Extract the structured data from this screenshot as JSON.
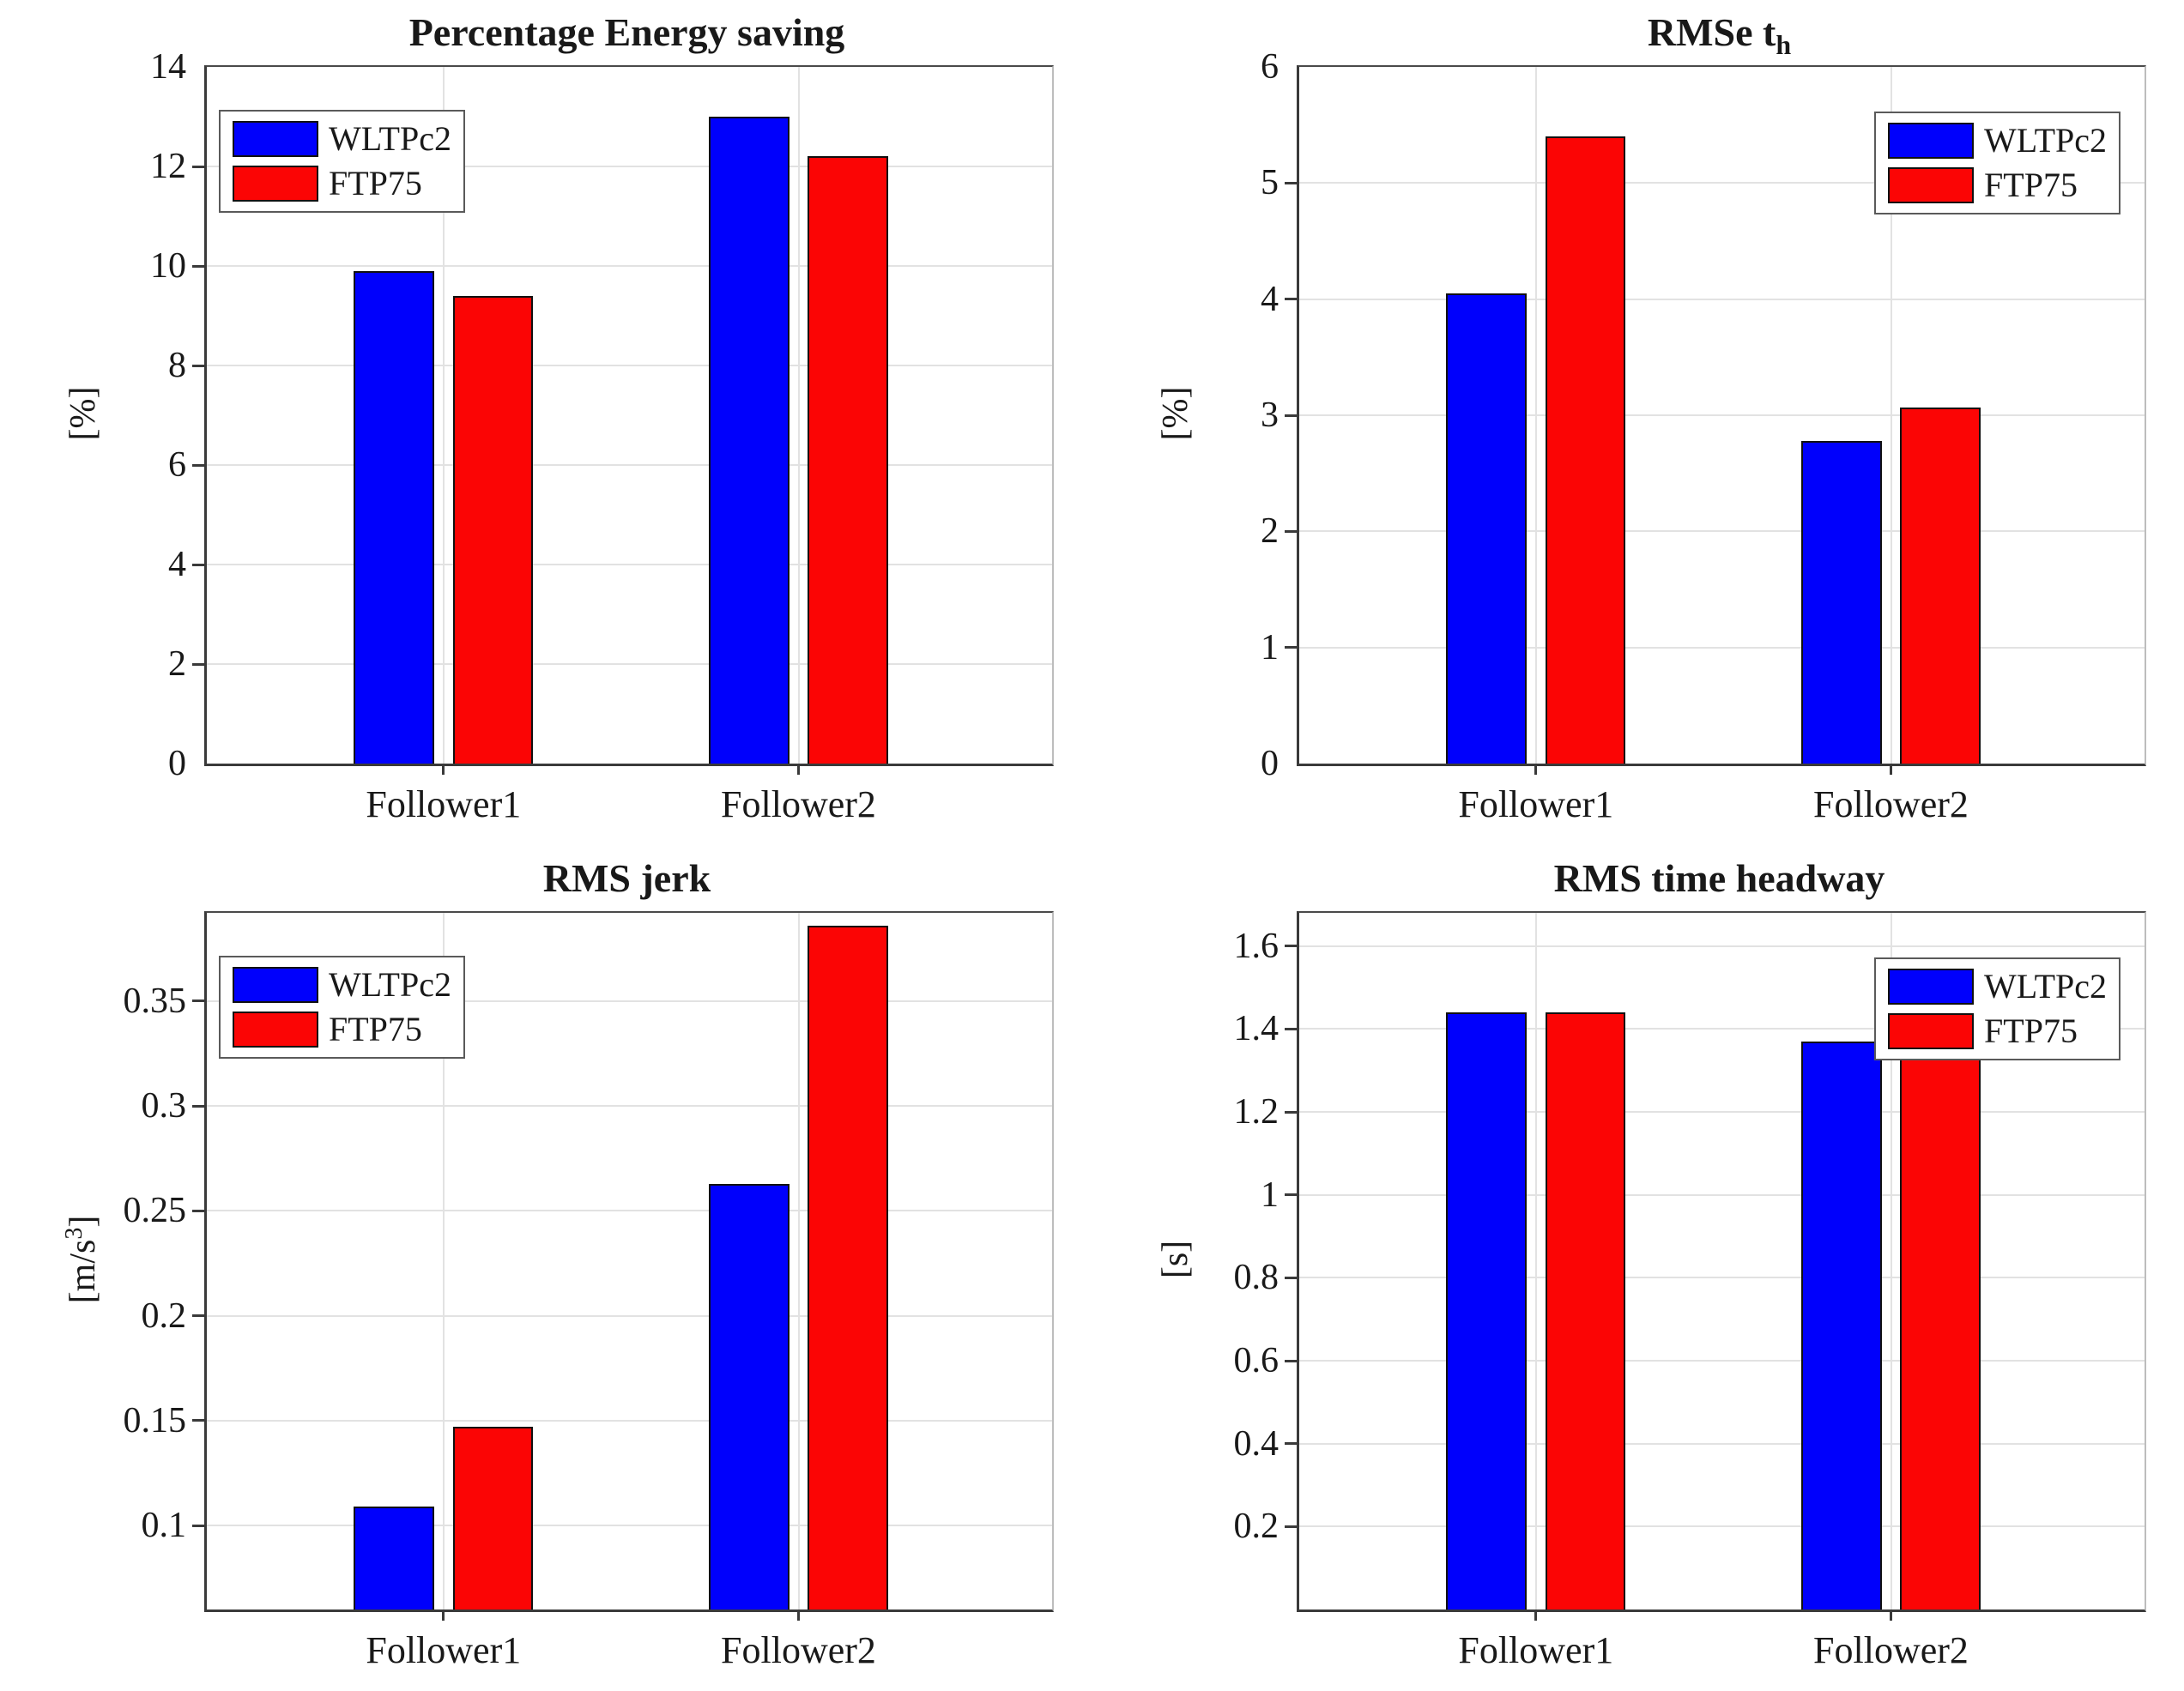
{
  "page": {
    "background": "#ffffff",
    "series_colors": {
      "WLTPc2": "#0000fc",
      "FTP75": "#fb0505"
    }
  },
  "chart_data": [
    {
      "type": "bar",
      "title": "Percentage Energy saving",
      "title_sub": "",
      "ylabel_pre": "[%]",
      "ylabel_sup": "",
      "ylabel_post": "",
      "categories": [
        "Follower1",
        "Follower2"
      ],
      "series": [
        {
          "name": "WLTPc2",
          "color": "#0000fc",
          "values": [
            9.9,
            13.0
          ]
        },
        {
          "name": "FTP75",
          "color": "#fb0505",
          "values": [
            9.4,
            12.2
          ]
        }
      ],
      "ylim": [
        0,
        14
      ],
      "yticks": [
        0,
        2,
        4,
        6,
        8,
        10,
        12,
        14
      ],
      "ytick_labels": [
        "0",
        "2",
        "4",
        "6",
        "8",
        "10",
        "12",
        "14"
      ],
      "grid": true,
      "legend_pos": "top-left",
      "centers": [
        0.28,
        0.7
      ]
    },
    {
      "type": "bar",
      "title": "RMSe t",
      "title_sub": "h",
      "ylabel_pre": "[%]",
      "ylabel_sup": "",
      "ylabel_post": "",
      "categories": [
        "Follower1",
        "Follower2"
      ],
      "series": [
        {
          "name": "WLTPc2",
          "color": "#0000fc",
          "values": [
            4.05,
            2.78
          ]
        },
        {
          "name": "FTP75",
          "color": "#fb0505",
          "values": [
            5.4,
            3.07
          ]
        }
      ],
      "ylim": [
        0,
        6
      ],
      "yticks": [
        0,
        1,
        2,
        3,
        4,
        5,
        6
      ],
      "ytick_labels": [
        "0",
        "1",
        "2",
        "3",
        "4",
        "5",
        "6"
      ],
      "grid": true,
      "legend_pos": "top-right",
      "centers": [
        0.28,
        0.7
      ]
    },
    {
      "type": "bar",
      "title": "RMS jerk",
      "title_sub": "",
      "ylabel_pre": "[m/s",
      "ylabel_sup": "3",
      "ylabel_post": "]",
      "categories": [
        "Follower1",
        "Follower2"
      ],
      "series": [
        {
          "name": "WLTPc2",
          "color": "#0000fc",
          "values": [
            0.109,
            0.263
          ]
        },
        {
          "name": "FTP75",
          "color": "#fb0505",
          "values": [
            0.147,
            0.386
          ]
        }
      ],
      "ylim": [
        0.06,
        0.392
      ],
      "yticks": [
        0.1,
        0.15,
        0.2,
        0.25,
        0.3,
        0.35
      ],
      "ytick_labels": [
        "0.1",
        "0.15",
        "0.2",
        "0.25",
        "0.3",
        "0.35"
      ],
      "grid": true,
      "legend_pos": "top-left",
      "centers": [
        0.28,
        0.7
      ]
    },
    {
      "type": "bar",
      "title": "RMS time headway",
      "title_sub": "",
      "ylabel_pre": "[s]",
      "ylabel_sup": "",
      "ylabel_post": "",
      "categories": [
        "Follower1",
        "Follower2"
      ],
      "series": [
        {
          "name": "WLTPc2",
          "color": "#0000fc",
          "values": [
            1.44,
            1.37
          ]
        },
        {
          "name": "FTP75",
          "color": "#fb0505",
          "values": [
            1.44,
            1.37
          ]
        }
      ],
      "ylim": [
        0,
        1.68
      ],
      "yticks": [
        0.2,
        0.4,
        0.6,
        0.8,
        1.0,
        1.2,
        1.4,
        1.6
      ],
      "ytick_labels": [
        "0.2",
        "0.4",
        "0.6",
        "0.8",
        "1",
        "1.2",
        "1.4",
        "1.6"
      ],
      "grid": true,
      "legend_pos": "top-right",
      "centers": [
        0.28,
        0.7
      ]
    }
  ]
}
